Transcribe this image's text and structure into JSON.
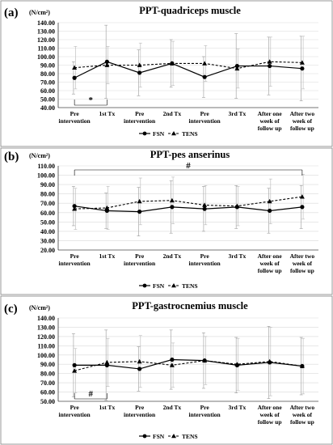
{
  "chart_data": [
    {
      "type": "line",
      "panel_label": "(a)",
      "title": "PPT-quadriceps muscle",
      "ylabel": "(N/cm²)",
      "xlabel": "",
      "ylim": [
        40,
        140
      ],
      "ytick_step": 10,
      "categories": [
        "Pre intervention",
        "1st Tx",
        "Pre intervention",
        "2nd Tx",
        "Pre intervention",
        "3rd Tx",
        "After one week of follow up",
        "After two week of follow up"
      ],
      "series": [
        {
          "name": "FSN",
          "marker": "circle",
          "line": "solid",
          "values": [
            75,
            94,
            81,
            92,
            76,
            89,
            89,
            86
          ],
          "err": [
            19,
            43,
            27,
            28,
            24,
            38,
            34,
            38
          ]
        },
        {
          "name": "TENS",
          "marker": "triangle",
          "line": "dashed",
          "values": [
            87,
            90,
            90,
            92,
            92,
            86,
            94,
            93
          ],
          "err": [
            25,
            22,
            26,
            26,
            21,
            23,
            29,
            31
          ]
        }
      ],
      "annotation": {
        "text": "*",
        "from": 0,
        "to": 1,
        "placement": "below"
      },
      "legend": "bottom-center",
      "grid": true
    },
    {
      "type": "line",
      "panel_label": "(b)",
      "title": "PPT-pes anserinus",
      "ylabel": "(N/cm²)",
      "xlabel": "",
      "ylim": [
        20,
        110
      ],
      "ytick_step": 10,
      "categories": [
        "Pre intervention",
        "1st Tx",
        "Pre intervention",
        "2nd Tx",
        "Pre intervention",
        "3rd Tx",
        "After one week of follow up",
        "After two week of follow up"
      ],
      "series": [
        {
          "name": "FSN",
          "marker": "circle",
          "line": "solid",
          "values": [
            67,
            62,
            61,
            66,
            64,
            66,
            62,
            66
          ],
          "err": [
            21,
            19,
            26,
            28,
            24,
            23,
            24,
            23
          ]
        },
        {
          "name": "TENS",
          "marker": "triangle",
          "line": "dashed",
          "values": [
            64,
            65,
            72,
            73,
            68,
            67,
            72,
            77
          ],
          "err": [
            22,
            23,
            25,
            25,
            21,
            21,
            24,
            24
          ]
        }
      ],
      "annotation": {
        "text": "#",
        "from": 0,
        "to": 7,
        "placement": "above"
      },
      "legend": "bottom-center",
      "grid": true
    },
    {
      "type": "line",
      "panel_label": "(c)",
      "title": "PPT-gastrocnemius muscle",
      "ylabel": "(N/cm²)",
      "xlabel": "",
      "ylim": [
        50,
        140
      ],
      "ytick_step": 10,
      "categories": [
        "Pre intervention",
        "1st Tx",
        "Pre intervention",
        "2nd Tx",
        "Pre intervention",
        "3rd Tx",
        "After one week of follow up",
        "After two week of follow up"
      ],
      "series": [
        {
          "name": "FSN",
          "marker": "circle",
          "line": "solid",
          "values": [
            89,
            89,
            85,
            95,
            94,
            89,
            92,
            88
          ],
          "err": [
            34,
            38,
            24,
            32,
            30,
            30,
            39,
            31
          ]
        },
        {
          "name": "TENS",
          "marker": "triangle",
          "line": "dashed",
          "values": [
            83,
            92,
            93,
            89,
            94,
            90,
            93,
            88
          ],
          "err": [
            24,
            26,
            28,
            24,
            26,
            28,
            37,
            30
          ]
        }
      ],
      "annotation": {
        "text": "#",
        "from": 0,
        "to": 1,
        "placement": "below"
      },
      "legend": "bottom-center",
      "grid": true
    }
  ]
}
